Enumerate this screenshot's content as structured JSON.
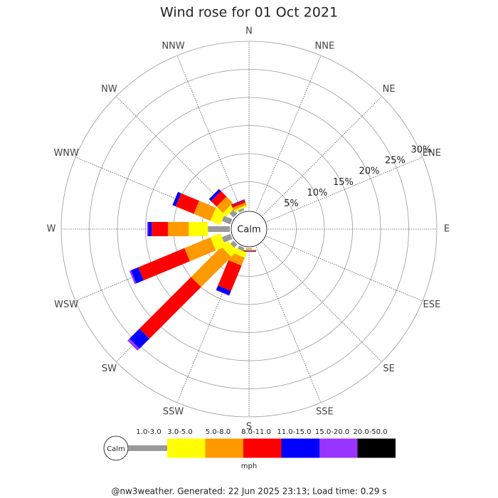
{
  "chart_data": {
    "type": "windrose",
    "title": "Wind rose for 01 Oct 2021",
    "directions": [
      "N",
      "NNE",
      "NE",
      "ENE",
      "E",
      "ESE",
      "SE",
      "SSE",
      "S",
      "SSW",
      "SW",
      "WSW",
      "W",
      "WNW",
      "NW",
      "NNW"
    ],
    "calm_label": "Calm",
    "unit": "mph",
    "rlim": [
      0,
      30
    ],
    "rticks": [
      {
        "value": 5,
        "label": "5%"
      },
      {
        "value": 10,
        "label": "10%"
      },
      {
        "value": 15,
        "label": "15%"
      },
      {
        "value": 20,
        "label": "20%"
      },
      {
        "value": 25,
        "label": "25%"
      },
      {
        "value": 30,
        "label": "30%"
      }
    ],
    "series": [
      {
        "name": "1.0-3.0",
        "color": "#999999",
        "values": [
          0,
          0,
          0,
          0,
          0,
          0,
          0,
          0,
          0.2,
          0.6,
          0.8,
          1.6,
          3.9,
          1.6,
          1.0,
          0.4
        ]
      },
      {
        "name": "3.0-5.0",
        "color": "#ffff00",
        "values": [
          0,
          0,
          0,
          0,
          0,
          0,
          0,
          0,
          0.1,
          1.0,
          1.5,
          1.9,
          3.4,
          1.9,
          0.9,
          0.3
        ]
      },
      {
        "name": "5.0-8.0",
        "color": "#ff9900",
        "values": [
          0,
          0,
          0,
          0,
          0,
          0,
          0,
          0,
          0.1,
          1.5,
          7.6,
          5.0,
          3.7,
          3.2,
          1.6,
          0.5
        ]
      },
      {
        "name": "8.0-11.0",
        "color": "#ff0000",
        "values": [
          0,
          0,
          0,
          0,
          0,
          0,
          0,
          0,
          0.1,
          4.9,
          13.0,
          8.9,
          2.9,
          3.5,
          1.4,
          0.5
        ]
      },
      {
        "name": "11.0-15.0",
        "color": "#0000ff",
        "values": [
          0,
          0,
          0,
          0,
          0,
          0,
          0,
          0,
          0.1,
          0.8,
          2.5,
          1.4,
          0.6,
          0.6,
          0.5,
          0.1
        ]
      },
      {
        "name": "15.0-20.0",
        "color": "#9933ff",
        "values": [
          0,
          0,
          0,
          0,
          0,
          0,
          0,
          0,
          0,
          0.1,
          0.5,
          0.3,
          0.2,
          0,
          0,
          0
        ]
      },
      {
        "name": "20.0-50.0",
        "color": "#000000",
        "values": [
          0,
          0,
          0,
          0,
          0,
          0,
          0,
          0,
          0,
          0,
          0,
          0,
          0,
          0,
          0,
          0
        ]
      }
    ],
    "footer": "@nw3weather. Generated: 22 Jun 2025 23:13; Load time: 0.29 s"
  }
}
